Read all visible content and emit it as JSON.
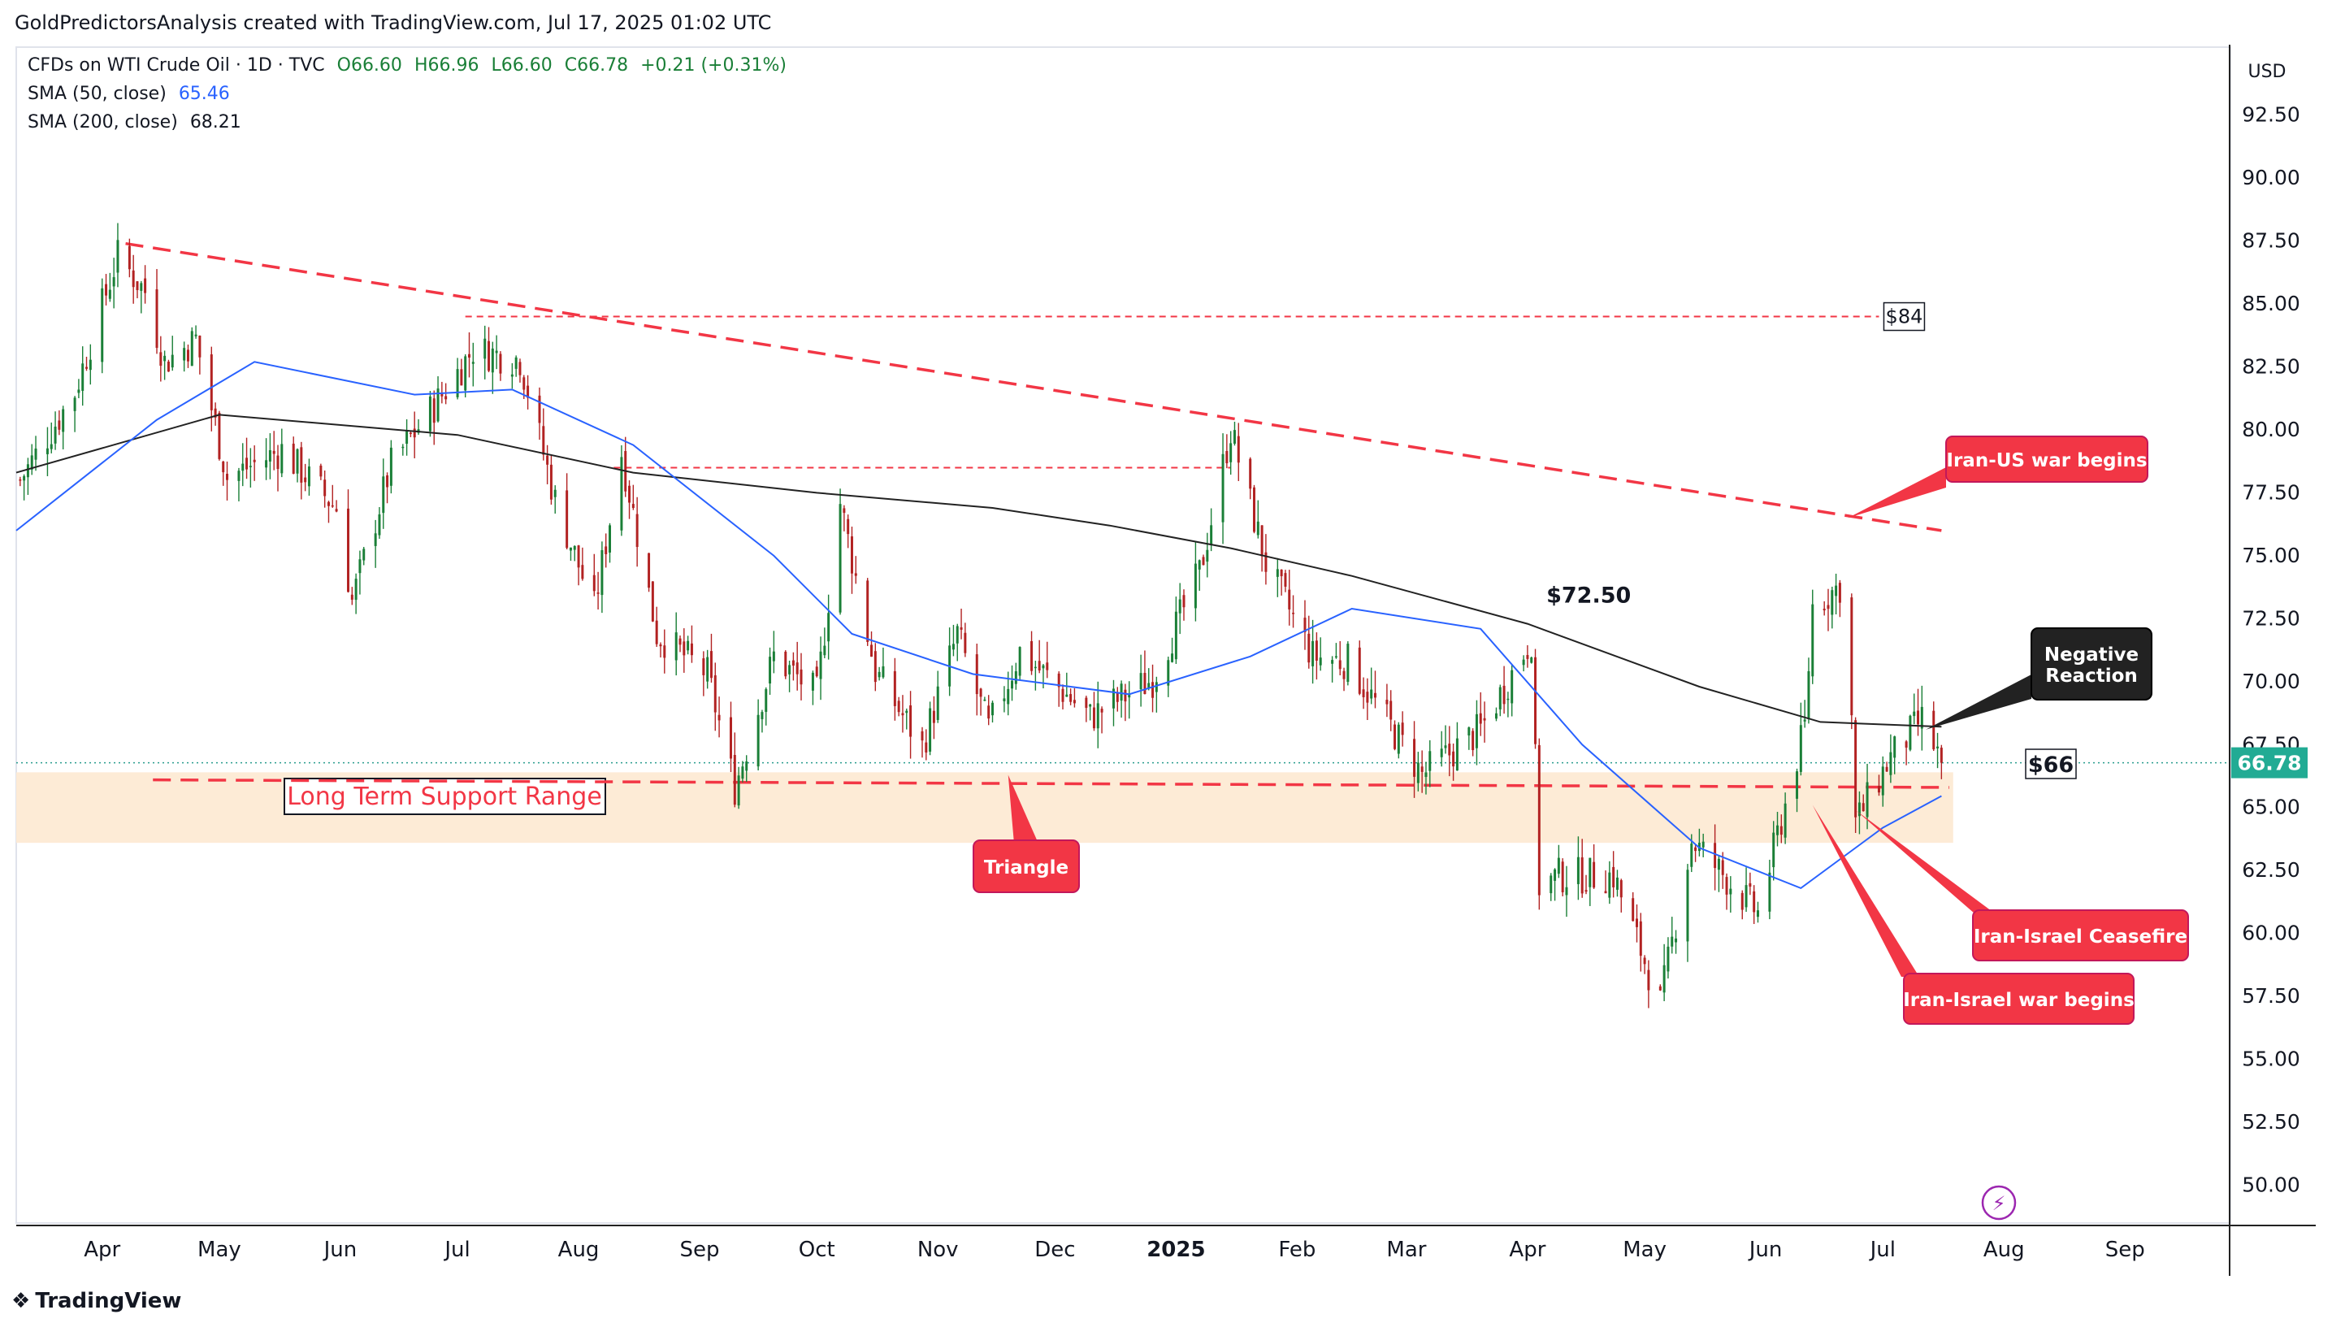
{
  "header": {
    "author_line": "GoldPredictorsAnalysis created with TradingView.com, Jul 17, 2025 01:02 UTC"
  },
  "legend": {
    "symbol": "CFDs on WTI Crude Oil · 1D · TVC",
    "ohlc": {
      "o": "O66.60",
      "h": "H66.96",
      "l": "L66.60",
      "c": "C66.78",
      "chg": "+0.21 (+0.31%)"
    },
    "sma50_label": "SMA (50, close)",
    "sma50_value": "65.46",
    "sma200_label": "SMA (200, close)",
    "sma200_value": "68.21"
  },
  "colors": {
    "up": "#1a7f37",
    "down": "#b22222",
    "sma50": "#2962ff",
    "sma200": "#222222",
    "annotation_red": "#f23645",
    "support_fill": "#fdebd6",
    "price_badge": "#22ab94"
  },
  "branding": {
    "name": "TradingView",
    "icon": "tradingview-logo-icon"
  },
  "chart_data": {
    "type": "candlestick",
    "title": "CFDs on WTI Crude Oil · 1D · TVC",
    "currency_label": "USD",
    "y_ticks": [
      "92.50",
      "90.00",
      "87.50",
      "85.00",
      "82.50",
      "80.00",
      "77.50",
      "75.00",
      "72.50",
      "70.00",
      "67.50",
      "65.00",
      "62.50",
      "60.00",
      "57.50",
      "55.00",
      "52.50",
      "50.00"
    ],
    "ylim": [
      48.5,
      95.2
    ],
    "x_ticks": [
      {
        "label": "Apr",
        "date": "2024-04-01"
      },
      {
        "label": "May",
        "date": "2024-05-01"
      },
      {
        "label": "Jun",
        "date": "2024-06-01"
      },
      {
        "label": "Jul",
        "date": "2024-07-01"
      },
      {
        "label": "Aug",
        "date": "2024-08-01"
      },
      {
        "label": "Sep",
        "date": "2024-09-01"
      },
      {
        "label": "Oct",
        "date": "2024-10-01"
      },
      {
        "label": "Nov",
        "date": "2024-11-01"
      },
      {
        "label": "Dec",
        "date": "2024-12-01"
      },
      {
        "label": "2025",
        "date": "2025-01-01",
        "bold": true
      },
      {
        "label": "Feb",
        "date": "2025-02-01"
      },
      {
        "label": "Mar",
        "date": "2025-03-01"
      },
      {
        "label": "Apr",
        "date": "2025-04-01"
      },
      {
        "label": "May",
        "date": "2025-05-01"
      },
      {
        "label": "Jun",
        "date": "2025-06-01"
      },
      {
        "label": "Jul",
        "date": "2025-07-01"
      },
      {
        "label": "Aug",
        "date": "2025-08-01"
      },
      {
        "label": "Sep",
        "date": "2025-09-01"
      }
    ],
    "xlim": [
      "2024-03-10",
      "2025-09-28"
    ],
    "price_path": [
      {
        "date": "2024-03-11",
        "close": 78.0
      },
      {
        "date": "2024-03-25",
        "close": 81.5
      },
      {
        "date": "2024-04-05",
        "close": 86.9
      },
      {
        "date": "2024-04-12",
        "close": 85.5
      },
      {
        "date": "2024-04-17",
        "close": 82.7
      },
      {
        "date": "2024-04-25",
        "close": 83.6
      },
      {
        "date": "2024-05-03",
        "close": 78.1
      },
      {
        "date": "2024-05-17",
        "close": 79.2
      },
      {
        "date": "2024-05-31",
        "close": 76.9
      },
      {
        "date": "2024-06-04",
        "close": 73.2
      },
      {
        "date": "2024-06-14",
        "close": 78.6
      },
      {
        "date": "2024-06-28",
        "close": 81.6
      },
      {
        "date": "2024-07-05",
        "close": 83.2
      },
      {
        "date": "2024-07-17",
        "close": 82.8
      },
      {
        "date": "2024-07-26",
        "close": 77.2
      },
      {
        "date": "2024-08-05",
        "close": 72.9
      },
      {
        "date": "2024-08-12",
        "close": 79.1
      },
      {
        "date": "2024-08-21",
        "close": 71.9
      },
      {
        "date": "2024-09-03",
        "close": 70.3
      },
      {
        "date": "2024-09-10",
        "close": 65.8
      },
      {
        "date": "2024-09-20",
        "close": 71.0
      },
      {
        "date": "2024-10-01",
        "close": 69.5
      },
      {
        "date": "2024-10-07",
        "close": 77.1
      },
      {
        "date": "2024-10-16",
        "close": 70.4
      },
      {
        "date": "2024-10-28",
        "close": 67.4
      },
      {
        "date": "2024-11-06",
        "close": 71.9
      },
      {
        "date": "2024-11-14",
        "close": 68.1
      },
      {
        "date": "2024-11-22",
        "close": 71.2
      },
      {
        "date": "2024-12-10",
        "close": 68.6
      },
      {
        "date": "2024-12-26",
        "close": 70.1
      },
      {
        "date": "2025-01-07",
        "close": 74.3
      },
      {
        "date": "2025-01-15",
        "close": 80.0
      },
      {
        "date": "2025-01-24",
        "close": 74.7
      },
      {
        "date": "2025-02-05",
        "close": 71.0
      },
      {
        "date": "2025-02-14",
        "close": 70.8
      },
      {
        "date": "2025-03-05",
        "close": 66.3
      },
      {
        "date": "2025-03-20",
        "close": 68.1
      },
      {
        "date": "2025-04-02",
        "close": 71.7
      },
      {
        "date": "2025-04-04",
        "close": 61.9
      },
      {
        "date": "2025-04-09",
        "close": 62.3
      },
      {
        "date": "2025-04-23",
        "close": 62.3
      },
      {
        "date": "2025-05-05",
        "close": 57.2
      },
      {
        "date": "2025-05-13",
        "close": 63.7
      },
      {
        "date": "2025-05-30",
        "close": 60.8
      },
      {
        "date": "2025-06-11",
        "close": 68.2
      },
      {
        "date": "2025-06-13",
        "close": 73.0
      },
      {
        "date": "2025-06-20",
        "close": 73.8
      },
      {
        "date": "2025-06-23",
        "close": 68.5
      },
      {
        "date": "2025-06-24",
        "close": 64.4
      },
      {
        "date": "2025-07-03",
        "close": 67.0
      },
      {
        "date": "2025-07-11",
        "close": 68.5
      },
      {
        "date": "2025-07-16",
        "close": 66.78
      }
    ],
    "sma50_path": [
      {
        "date": "2024-03-10",
        "value": 76.0
      },
      {
        "date": "2024-04-15",
        "value": 80.4
      },
      {
        "date": "2024-05-10",
        "value": 82.7
      },
      {
        "date": "2024-06-20",
        "value": 81.4
      },
      {
        "date": "2024-07-15",
        "value": 81.6
      },
      {
        "date": "2024-08-15",
        "value": 79.4
      },
      {
        "date": "2024-09-20",
        "value": 75.0
      },
      {
        "date": "2024-10-10",
        "value": 71.9
      },
      {
        "date": "2024-11-10",
        "value": 70.3
      },
      {
        "date": "2024-12-20",
        "value": 69.5
      },
      {
        "date": "2025-01-20",
        "value": 71.0
      },
      {
        "date": "2025-02-15",
        "value": 72.9
      },
      {
        "date": "2025-03-20",
        "value": 72.1
      },
      {
        "date": "2025-04-15",
        "value": 67.5
      },
      {
        "date": "2025-05-15",
        "value": 63.4
      },
      {
        "date": "2025-06-10",
        "value": 61.8
      },
      {
        "date": "2025-07-01",
        "value": 64.2
      },
      {
        "date": "2025-07-16",
        "value": 65.46
      }
    ],
    "sma200_path": [
      {
        "date": "2024-03-10",
        "value": 78.3
      },
      {
        "date": "2024-05-01",
        "value": 80.6
      },
      {
        "date": "2024-07-01",
        "value": 79.8
      },
      {
        "date": "2024-08-15",
        "value": 78.3
      },
      {
        "date": "2024-10-01",
        "value": 77.5
      },
      {
        "date": "2024-11-15",
        "value": 76.9
      },
      {
        "date": "2024-12-15",
        "value": 76.2
      },
      {
        "date": "2025-01-15",
        "value": 75.3
      },
      {
        "date": "2025-02-15",
        "value": 74.2
      },
      {
        "date": "2025-04-01",
        "value": 72.3
      },
      {
        "date": "2025-05-15",
        "value": 69.8
      },
      {
        "date": "2025-06-15",
        "value": 68.4
      },
      {
        "date": "2025-07-16",
        "value": 68.21
      }
    ],
    "trendlines": [
      {
        "name": "downtrend",
        "from": {
          "date": "2024-04-07",
          "value": 87.4
        },
        "to": {
          "date": "2025-07-16",
          "value": 76.0
        },
        "style": "dashed"
      },
      {
        "name": "support",
        "from": {
          "date": "2024-04-14",
          "value": 66.1
        },
        "to": {
          "date": "2025-07-18",
          "value": 65.8
        },
        "style": "dashed"
      }
    ],
    "horizontal_levels": [
      {
        "name": "level-84",
        "value": 84.5,
        "from": "2024-07-03",
        "to": "2025-06-30",
        "label": "$84"
      },
      {
        "name": "level-78",
        "value": 78.5,
        "from": "2024-08-10",
        "to": "2025-01-15"
      }
    ],
    "support_zone": {
      "from": "2024-03-10",
      "to": "2025-07-19",
      "low": 63.6,
      "high": 66.4,
      "label": "Long Term Support Range"
    },
    "current_price": {
      "value": 66.78,
      "label": "66.78"
    },
    "annotations": [
      {
        "text": "$72.50",
        "date": "2025-03-31",
        "value": 72.5,
        "style": "plain"
      },
      {
        "text": "Iran-US war begins",
        "date": "2025-06-22",
        "value": 76.5,
        "style": "red-callout"
      },
      {
        "text": "Negative Reaction",
        "date": "2025-07-12",
        "value": 68.1,
        "style": "dark-callout"
      },
      {
        "text": "$66",
        "date": "2025-07-18",
        "value": 66.0,
        "style": "boxed"
      },
      {
        "text": "Triangle",
        "date": "2024-11-19",
        "value": 66.3,
        "style": "red-callout"
      },
      {
        "text": "Iran-Israel Ceasefire",
        "date": "2025-06-24",
        "value": 64.9,
        "style": "red-callout"
      },
      {
        "text": "Iran-Israel war begins",
        "date": "2025-06-13",
        "value": 65.1,
        "style": "red-callout"
      }
    ]
  }
}
